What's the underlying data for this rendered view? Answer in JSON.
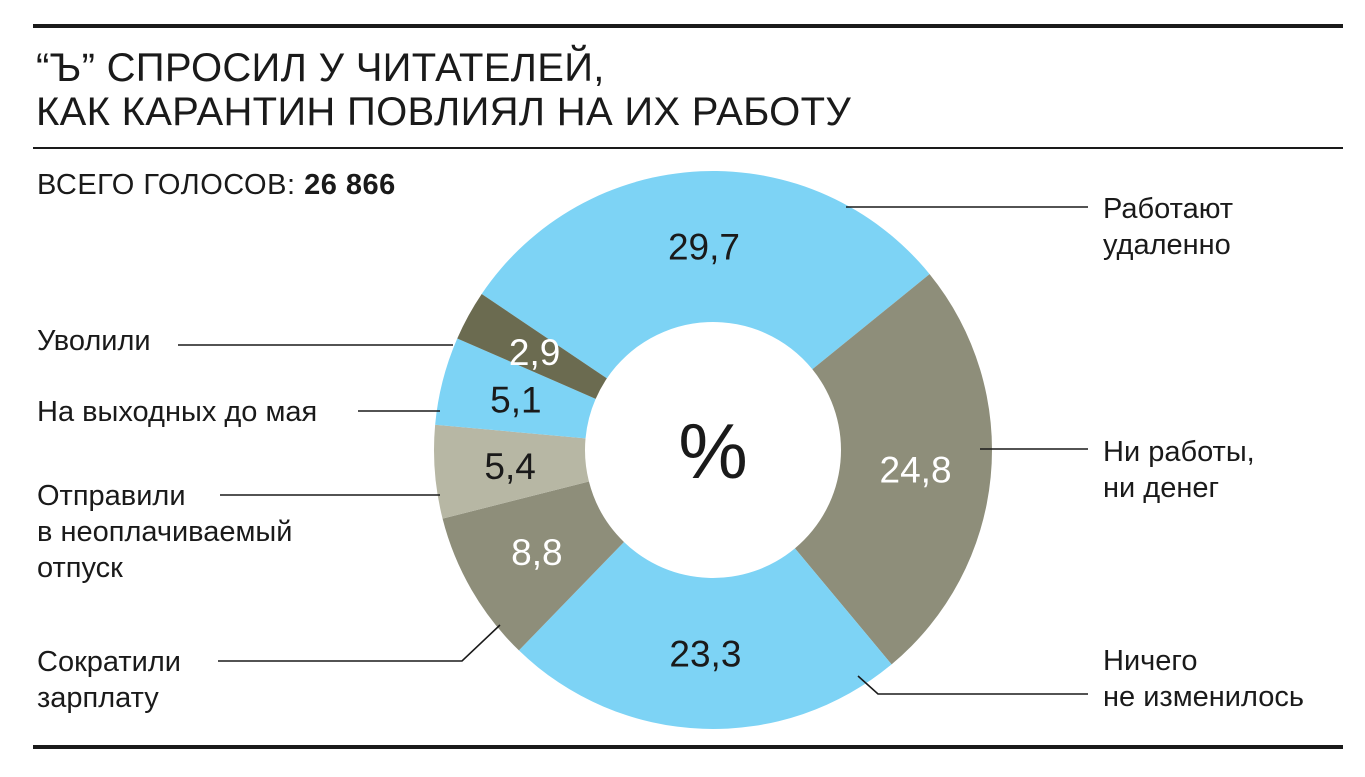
{
  "header": {
    "title_line1": "“Ъ” СПРОСИЛ У ЧИТАТЕЛЕЙ,",
    "title_line2": "КАК КАРАНТИН ПОВЛИЯЛ НА ИХ РАБОТУ",
    "total_label": "ВСЕГО ГОЛОСОВ: ",
    "total_value": "26 866"
  },
  "chart_data": {
    "type": "pie",
    "donut": true,
    "center_label": "%",
    "slices": [
      {
        "label": "Работают удаленно",
        "label_lines": [
          "Работают",
          "удаленно"
        ],
        "value": 29.7,
        "value_label": "29,7",
        "color": "#7dd3f5",
        "value_color": "#1a1a1a"
      },
      {
        "label": "Ни работы, ни денег",
        "label_lines": [
          "Ни работы,",
          "ни денег"
        ],
        "value": 24.8,
        "value_label": "24,8",
        "color": "#8e8e7a",
        "value_color": "#ffffff"
      },
      {
        "label": "Ничего не изменилось",
        "label_lines": [
          "Ничего",
          "не изменилось"
        ],
        "value": 23.3,
        "value_label": "23,3",
        "color": "#7dd3f5",
        "value_color": "#1a1a1a"
      },
      {
        "label": "Сократили зарплату",
        "label_lines": [
          "Сократили",
          "зарплату"
        ],
        "value": 8.8,
        "value_label": "8,8",
        "color": "#8e8e7a",
        "value_color": "#ffffff"
      },
      {
        "label": "Отправили в неоплачиваемый отпуск",
        "label_lines": [
          "Отправили",
          "в неоплачиваемый",
          "отпуск"
        ],
        "value": 5.4,
        "value_label": "5,4",
        "color": "#b7b7a4",
        "value_color": "#1a1a1a"
      },
      {
        "label": "На выходных до мая",
        "label_lines": [
          "На выходных до мая"
        ],
        "value": 5.1,
        "value_label": "5,1",
        "color": "#7dd3f5",
        "value_color": "#1a1a1a"
      },
      {
        "label": "Уволили",
        "label_lines": [
          "Уволили"
        ],
        "value": 2.9,
        "value_label": "2,9",
        "color": "#6b6b50",
        "value_color": "#ffffff"
      }
    ]
  }
}
